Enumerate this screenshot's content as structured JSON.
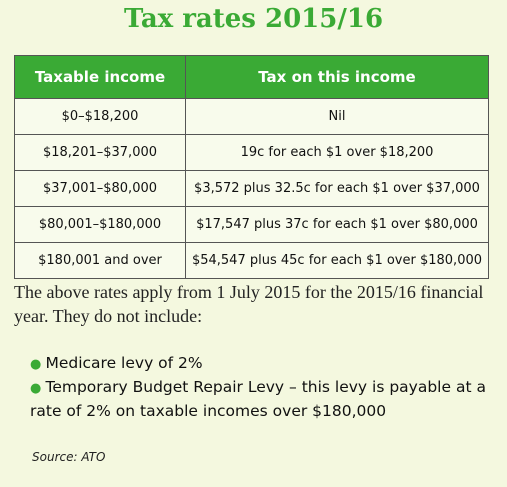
{
  "header": {
    "title": "Tax rates 2015/16"
  },
  "table": {
    "headers": [
      "Taxable income",
      "Tax on this income"
    ],
    "rows": [
      [
        "$0–$18,200",
        "Nil"
      ],
      [
        "$18,201–$37,000",
        "19c for each $1 over $18,200"
      ],
      [
        "$37,001–$80,000",
        "$3,572 plus 32.5c for each $1 over $37,000"
      ],
      [
        "$80,001–$180,000",
        "$17,547 plus 37c for each $1 over $80,000"
      ],
      [
        "$180,001 and over",
        "$54,547 plus 45c for each $1 over $180,000"
      ]
    ]
  },
  "paragraph": "The above rates apply from 1 July 2015 for the 2015/16 financial year. They do not include:",
  "bullets": [
    "Medicare levy of 2%",
    "Temporary Budget Repair Levy – this levy is payable at a rate of 2% on taxable incomes over $180,000"
  ],
  "source": "Source: ATO"
}
